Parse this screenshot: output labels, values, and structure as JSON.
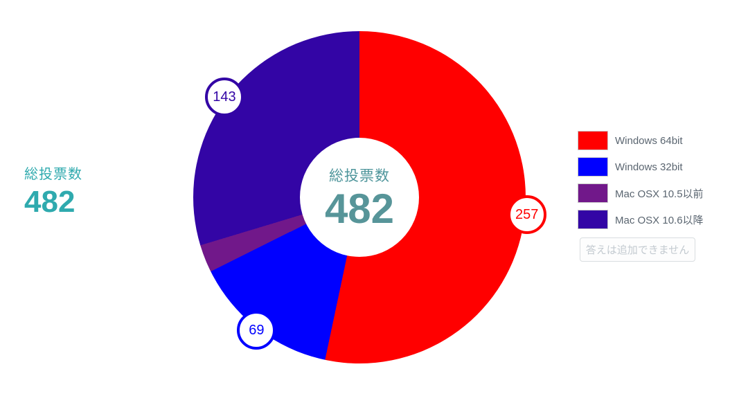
{
  "left_summary": {
    "label": "総投票数",
    "value": "482"
  },
  "center_summary": {
    "label": "総投票数",
    "value": "482"
  },
  "chart_data": {
    "type": "pie",
    "donut": true,
    "start_angle_deg": 0,
    "direction": "clockwise",
    "total": 482,
    "center_label": "総投票数",
    "center_value": 482,
    "series": [
      {
        "name": "Windows 64bit",
        "value": 257,
        "color": "#ff0000",
        "badge": "257"
      },
      {
        "name": "Windows 32bit",
        "value": 69,
        "color": "#0000ff",
        "badge": "69"
      },
      {
        "name": "Mac OSX 10.5以前",
        "value": 13,
        "color": "#71188a",
        "badge": null
      },
      {
        "name": "Mac OSX 10.6以降",
        "value": 143,
        "color": "#3305a5",
        "badge": "143"
      }
    ],
    "legend_position": "right"
  },
  "legend": {
    "items": [
      {
        "label": "Windows 64bit",
        "color": "#ff0000"
      },
      {
        "label": "Windows 32bit",
        "color": "#0000ff"
      },
      {
        "label": "Mac OSX 10.5以前",
        "color": "#71188a"
      },
      {
        "label": "Mac OSX 10.6以降",
        "color": "#3305a5"
      }
    ],
    "disabled_button_label": "答えは追加できません"
  },
  "colors": {
    "left_text": "#2faaae",
    "center_label_text": "#4e959b",
    "center_value_text": "#579599",
    "legend_text": "#5a6570",
    "swatch_border": "#c9c9c9",
    "button_text": "#c3cad0",
    "button_border": "#d9dde0"
  }
}
